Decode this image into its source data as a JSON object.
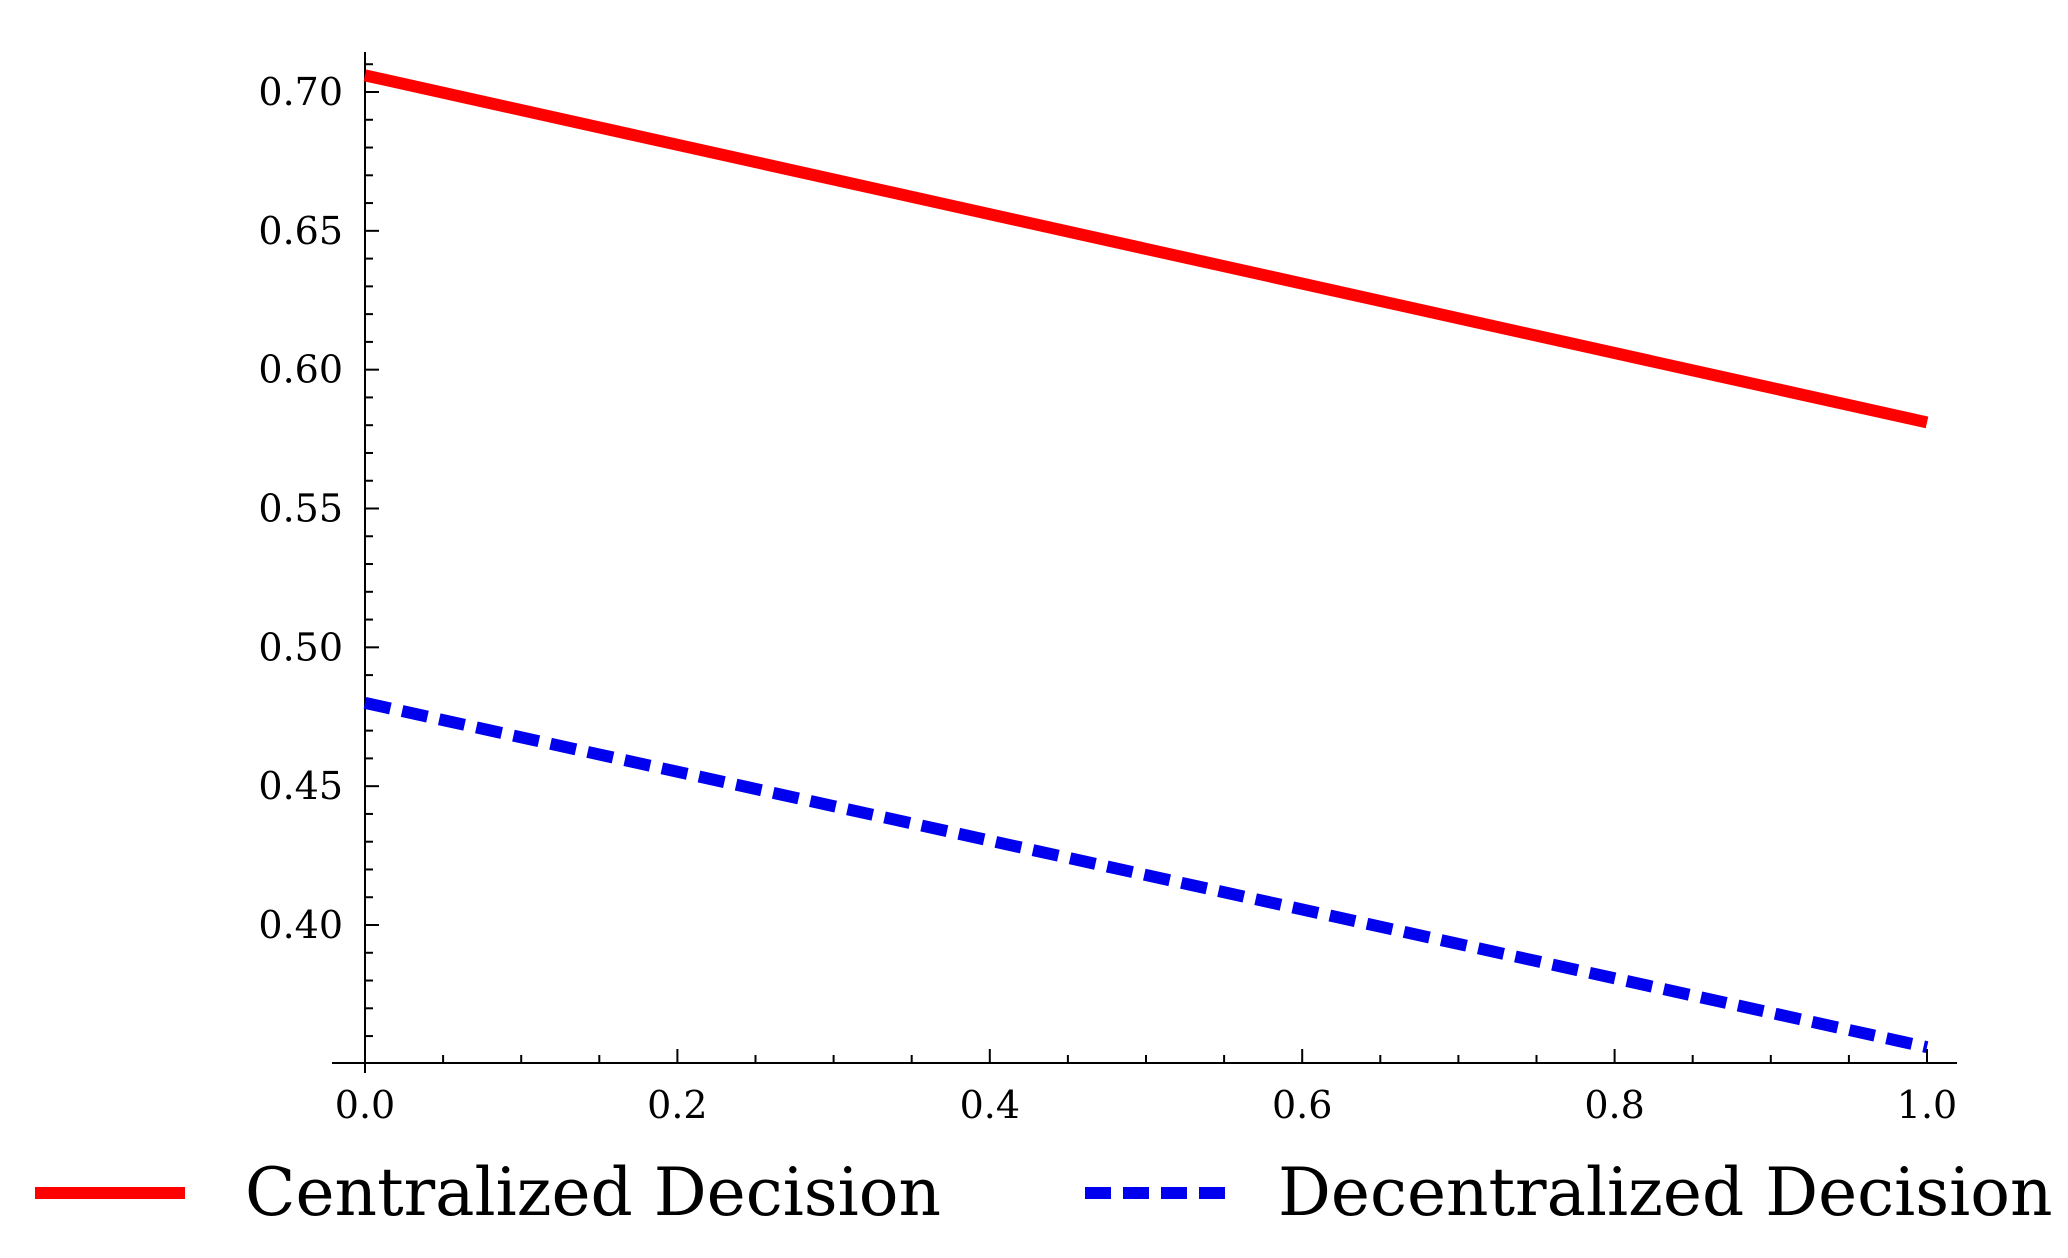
{
  "chart_data": {
    "type": "line",
    "title": "",
    "xlabel": "",
    "ylabel": "",
    "xlim": [
      0.0,
      1.0
    ],
    "ylim": [
      0.35,
      0.713
    ],
    "x_ticks": [
      0.0,
      0.2,
      0.4,
      0.6,
      0.8,
      1.0
    ],
    "x_tick_labels": [
      "0.0",
      "0.2",
      "0.4",
      "0.6",
      "0.8",
      "1.0"
    ],
    "y_ticks": [
      0.4,
      0.45,
      0.5,
      0.55,
      0.6,
      0.65,
      0.7
    ],
    "y_tick_labels": [
      "0.40",
      "0.45",
      "0.50",
      "0.55",
      "0.60",
      "0.65",
      "0.70"
    ],
    "grid": false,
    "legend_position": "bottom",
    "series": [
      {
        "name": "Centralized Decision",
        "style": "solid",
        "color": "#ff0000",
        "x": [
          0.0,
          1.0
        ],
        "y": [
          0.706,
          0.581
        ]
      },
      {
        "name": "Decentralized Decision",
        "style": "dashed",
        "color": "#0000ee",
        "x": [
          0.0,
          1.0
        ],
        "y": [
          0.48,
          0.356
        ]
      }
    ]
  }
}
